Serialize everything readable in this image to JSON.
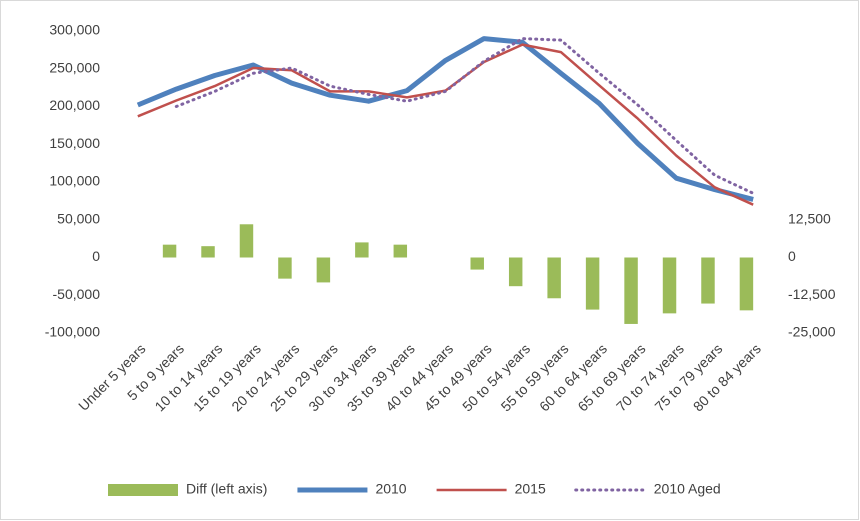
{
  "chart_data": {
    "type": "combo",
    "categories": [
      "Under 5 years",
      "5 to 9 years",
      "10 to 14 years",
      "15 to 19 years",
      "20 to 24 years",
      "25 to 29 years",
      "30 to 34 years",
      "35 to 39 years",
      "40 to 44 years",
      "45 to 49 years",
      "50 to 54 years",
      "55 to 59 years",
      "60 to 64 years",
      "65 to 69 years",
      "70 to 74 years",
      "75 to 79 years",
      "80 to 84 years"
    ],
    "series": [
      {
        "name": "Diff (left axis)",
        "type": "bar",
        "color": "#9bbb59",
        "values": [
          0,
          17000,
          15000,
          44000,
          -28000,
          -33000,
          20000,
          17000,
          0,
          -16000,
          -38000,
          -54000,
          -69000,
          -88000,
          -74000,
          -61000,
          -70000
        ]
      },
      {
        "name": "2010",
        "type": "line",
        "line_style": "solid",
        "color": "#4f81bd",
        "values": [
          202000,
          223000,
          241000,
          255000,
          231000,
          215000,
          207000,
          221000,
          261000,
          290000,
          285000,
          244000,
          204000,
          151000,
          105000,
          90000,
          77000
        ]
      },
      {
        "name": "2015",
        "type": "line",
        "line_style": "solid",
        "color": "#c0504d",
        "values": [
          187000,
          208000,
          227000,
          251000,
          248000,
          220000,
          220000,
          212000,
          221000,
          259000,
          282000,
          272000,
          228000,
          184000,
          135000,
          93000,
          70000
        ]
      },
      {
        "name": "2010 Aged",
        "type": "line",
        "line_style": "dotted",
        "color": "#8064a2",
        "values": [
          null,
          200000,
          220000,
          244000,
          251000,
          227000,
          216000,
          207000,
          220000,
          260000,
          290000,
          288000,
          244000,
          202000,
          155000,
          109000,
          85000
        ]
      }
    ],
    "ylim": [
      -100000,
      300000
    ],
    "yticks": [
      {
        "value": -100000,
        "label": "-100,000"
      },
      {
        "value": -50000,
        "label": "-50,000"
      },
      0,
      {
        "value": 50000,
        "label": "50,000"
      },
      {
        "value": 100000,
        "label": "100,000"
      },
      {
        "value": 150000,
        "label": "150,000"
      },
      {
        "value": 200000,
        "label": "200,000"
      },
      {
        "value": 250000,
        "label": "250,000"
      },
      {
        "value": 300000,
        "label": "300,000"
      }
    ],
    "y2lim": [
      -25000,
      75000
    ],
    "y2ticks": [
      {
        "value": -25000,
        "label": "-25,000"
      },
      {
        "value": -12500,
        "label": "-12,500"
      },
      0,
      {
        "value": 12500,
        "label": "12,500"
      }
    ],
    "grid": false,
    "legend": "bottom"
  }
}
